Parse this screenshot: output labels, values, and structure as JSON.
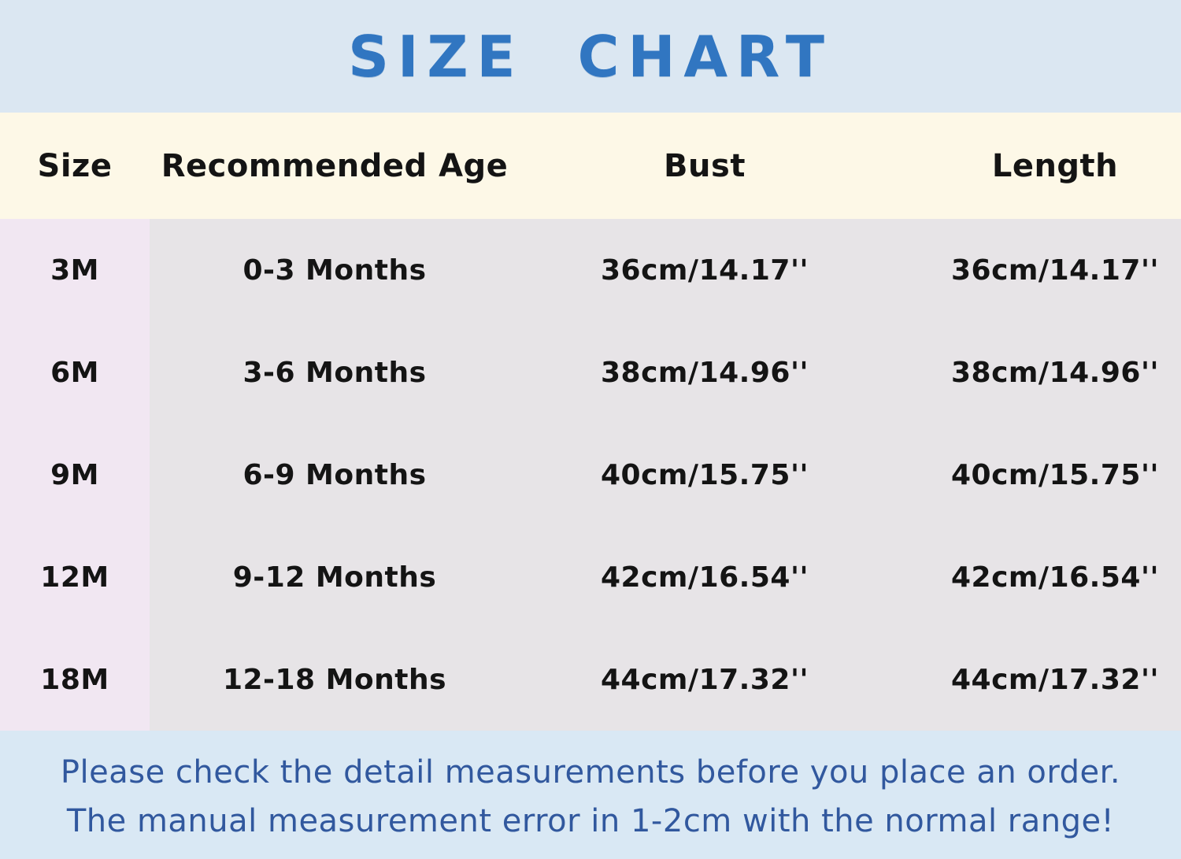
{
  "title": "SIZE CHART",
  "chart_data": {
    "type": "table",
    "title": "SIZE CHART",
    "columns": [
      "Size",
      "Recommended Age",
      "Bust",
      "Length"
    ],
    "rows": [
      [
        "3M",
        "0-3 Months",
        "36cm/14.17''",
        "36cm/14.17''"
      ],
      [
        "6M",
        "3-6 Months",
        "38cm/14.96''",
        "38cm/14.96''"
      ],
      [
        "9M",
        "6-9 Months",
        "40cm/15.75''",
        "40cm/15.75''"
      ],
      [
        "12M",
        "9-12 Months",
        "42cm/16.54''",
        "42cm/16.54''"
      ],
      [
        "18M",
        "12-18 Months",
        "44cm/17.32''",
        "44cm/17.32''"
      ]
    ],
    "notes": [
      "Please check the detail measurements before you place an order.",
      "The manual measurement error in 1-2cm with the normal range!"
    ]
  },
  "colors": {
    "banner_bg": "#DBE7F2",
    "title_text": "#3176C1",
    "header_row_bg": "#FDF8E7",
    "body_bg": "#E7E4E7",
    "size_column_bg": "#F1E7F2",
    "footer_bg": "#D9E8F4",
    "footer_text": "#31589E",
    "table_text": "#141414"
  }
}
